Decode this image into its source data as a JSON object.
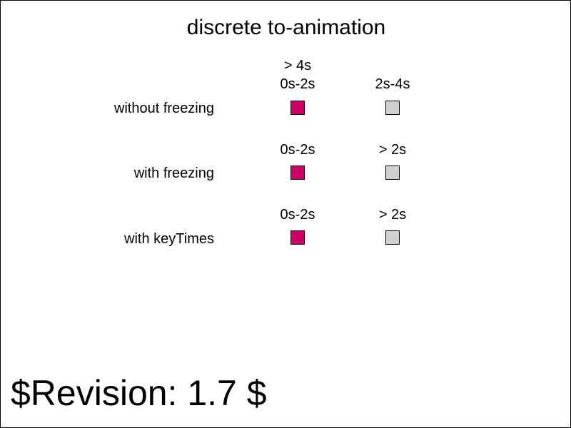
{
  "title": "discrete to-animation",
  "rows": [
    {
      "label": "without freezing",
      "header_extra": "> 4s",
      "headers": [
        "0s-2s",
        "2s-4s"
      ],
      "swatch_colors": [
        "#cc0066",
        "#d0d0d0"
      ]
    },
    {
      "label": "with freezing",
      "headers": [
        "0s-2s",
        "> 2s"
      ],
      "swatch_colors": [
        "#cc0066",
        "#d0d0d0"
      ]
    },
    {
      "label": "with keyTimes",
      "headers": [
        "0s-2s",
        "> 2s"
      ],
      "swatch_colors": [
        "#cc0066",
        "#d0d0d0"
      ]
    }
  ],
  "revision": "$Revision: 1.7 $"
}
